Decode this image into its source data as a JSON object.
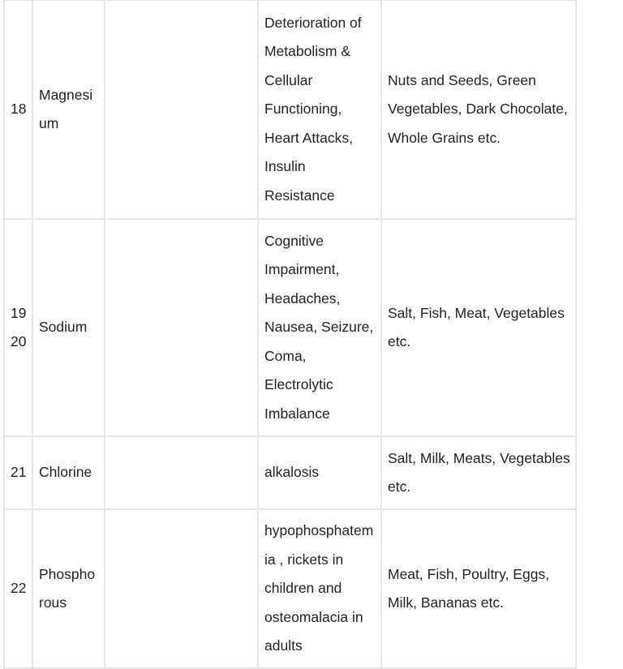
{
  "rows": [
    {
      "no": "18",
      "name": "Magnesium",
      "col3": "",
      "deficiency": "Deterioration of Metabolism & Cellular Functioning, Heart Attacks, Insulin Resistance",
      "sources": "Nuts and Seeds, Green Vegetables, Dark Chocolate, Whole Grains etc."
    },
    {
      "no": "1920",
      "name": "Sodium",
      "col3": "",
      "deficiency": "Cognitive Impairment, Headaches, Nausea, Seizure, Coma, Electrolytic Imbalance",
      "sources": "Salt, Fish, Meat, Vegetables etc."
    },
    {
      "no": "21",
      "name": "Chlorine",
      "col3": "",
      "deficiency": " alkalosis",
      "sources": "Salt, Milk, Meats, Vegetables etc."
    },
    {
      "no": "22",
      "name": "Phosphorous",
      "col3": "",
      "deficiency": "hypophosphatemia , rickets in children and osteomalacia in adults",
      "sources": "Meat, Fish, Poultry, Eggs, Milk, Bananas etc."
    }
  ]
}
